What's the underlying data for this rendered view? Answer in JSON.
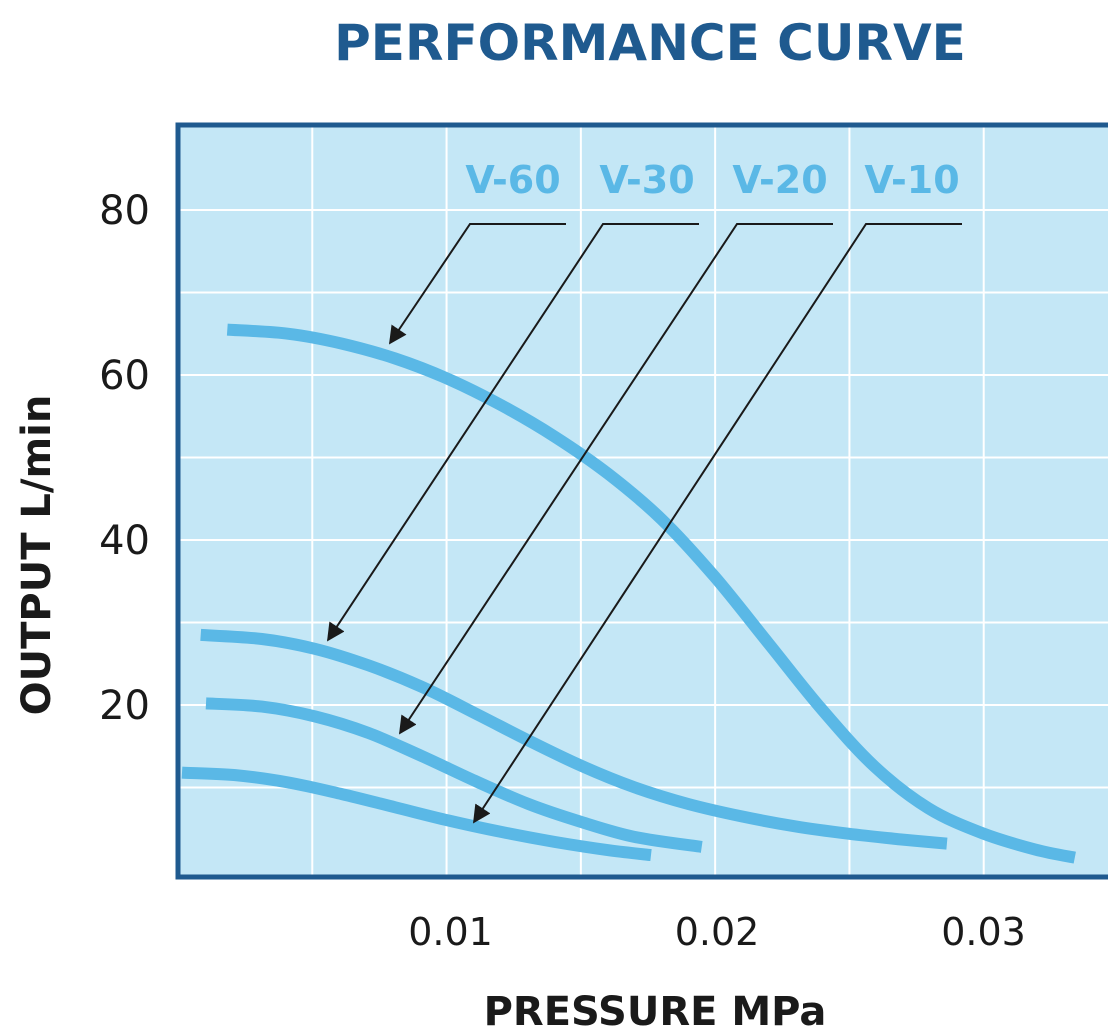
{
  "chart_data": {
    "type": "line",
    "title": "PERFORMANCE CURVE",
    "xlabel": "PRESSURE MPa",
    "ylabel": "OUTPUT L/min",
    "xlim": [
      0.0,
      0.034
    ],
    "ylim": [
      0,
      90
    ],
    "x_ticks": [
      0.01,
      0.02,
      0.03
    ],
    "x_tick_labels": [
      "0.01",
      "0.02",
      "0.03"
    ],
    "y_ticks": [
      20,
      40,
      60,
      80
    ],
    "y_tick_labels": [
      "20",
      "40",
      "60",
      "80"
    ],
    "grid": true,
    "legend_placement": "top (labels with arrows pointing to curves)",
    "colors": {
      "title": "#1f5a8f",
      "plot_background": "#c4e7f6",
      "frame": "#1f5a8f",
      "grid": "#ffffff",
      "series": "#5ab8e6",
      "series_label": "#5ab8e6",
      "arrow": "#1a1a1a"
    },
    "series": [
      {
        "name": "V-60",
        "x": [
          0.0017,
          0.004,
          0.006,
          0.008,
          0.01,
          0.012,
          0.014,
          0.016,
          0.018,
          0.02,
          0.022,
          0.024,
          0.026,
          0.028,
          0.03,
          0.032,
          0.0335
        ],
        "y": [
          65.5,
          65.0,
          63.8,
          62.0,
          59.5,
          56.3,
          52.5,
          48.0,
          42.5,
          35.5,
          27.5,
          19.5,
          12.5,
          7.5,
          4.5,
          2.5,
          1.5
        ]
      },
      {
        "name": "V-30",
        "x": [
          0.0007,
          0.003,
          0.005,
          0.007,
          0.009,
          0.011,
          0.013,
          0.015,
          0.017,
          0.019,
          0.021,
          0.023,
          0.025,
          0.027,
          0.0287
        ],
        "y": [
          28.5,
          28.0,
          26.8,
          24.8,
          22.2,
          19.0,
          15.7,
          12.6,
          10.0,
          8.0,
          6.5,
          5.3,
          4.4,
          3.7,
          3.2
        ]
      },
      {
        "name": "V-20",
        "x": [
          0.0009,
          0.003,
          0.005,
          0.007,
          0.009,
          0.011,
          0.013,
          0.015,
          0.017,
          0.0195
        ],
        "y": [
          20.2,
          19.8,
          18.6,
          16.6,
          13.8,
          10.8,
          8.0,
          5.8,
          4.0,
          2.8
        ]
      },
      {
        "name": "V-10",
        "x": [
          0.0,
          0.002,
          0.004,
          0.006,
          0.008,
          0.01,
          0.012,
          0.014,
          0.016,
          0.0176
        ],
        "y": [
          11.8,
          11.5,
          10.6,
          9.2,
          7.6,
          6.0,
          4.6,
          3.4,
          2.4,
          1.8
        ]
      }
    ]
  }
}
